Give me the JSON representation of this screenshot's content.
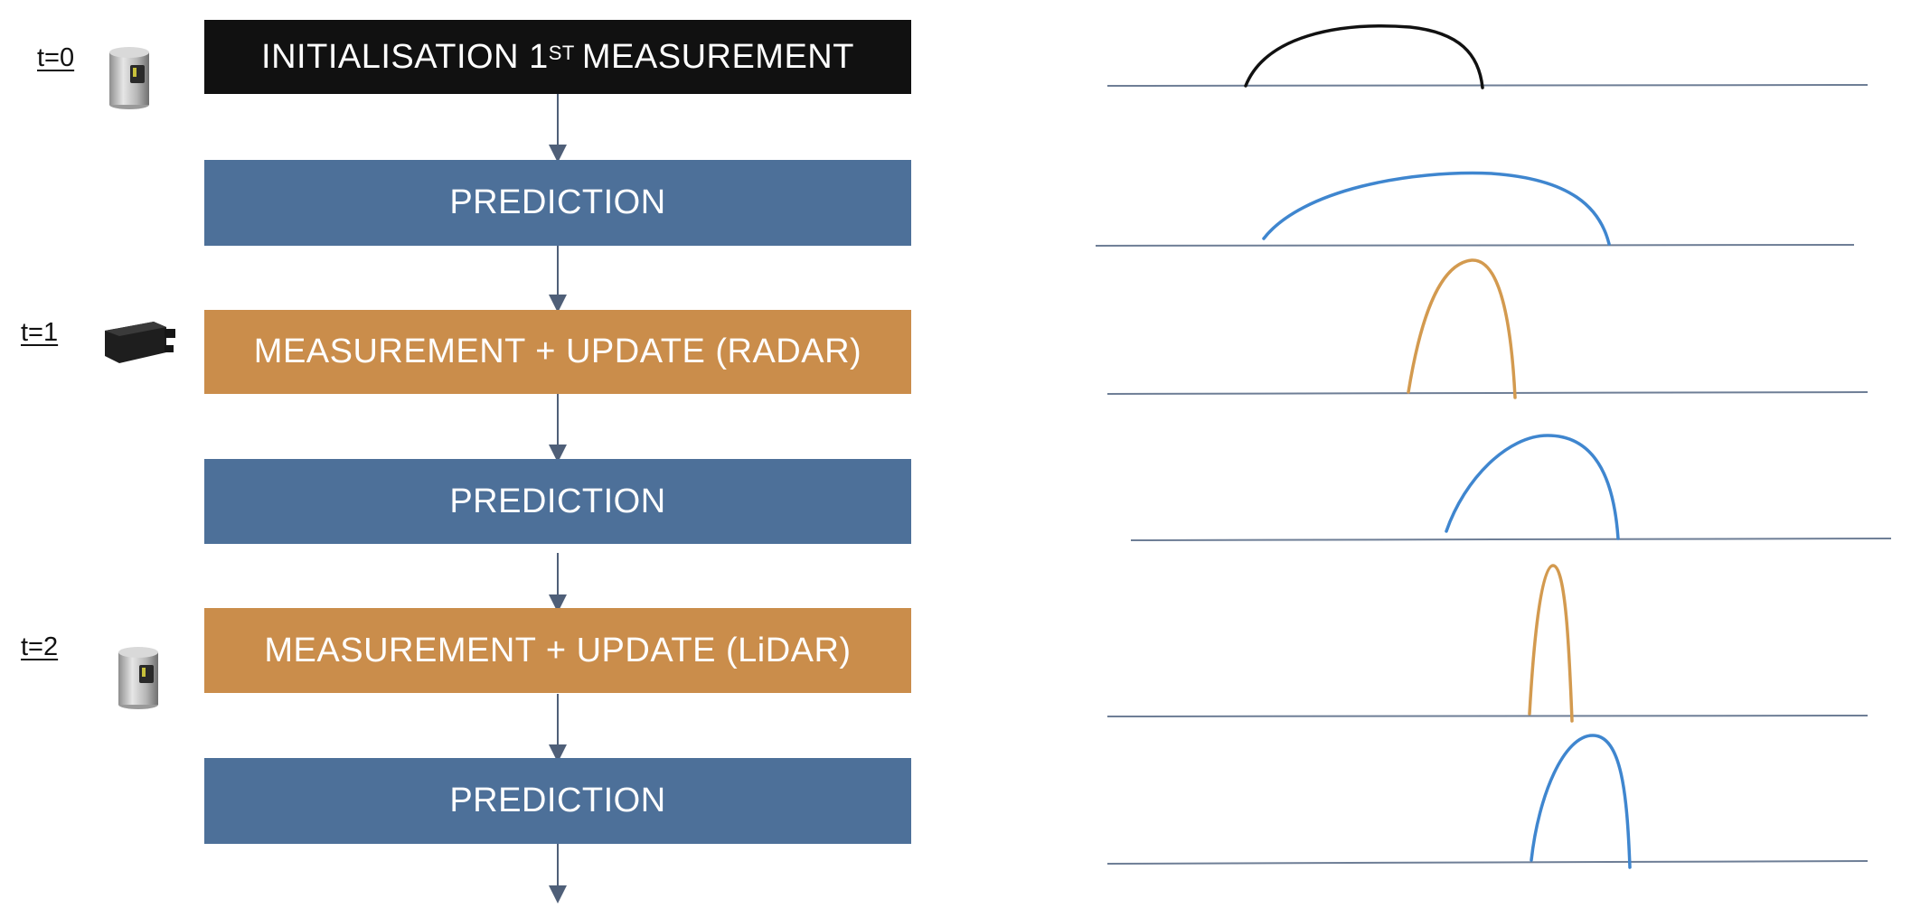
{
  "timeline": [
    {
      "id": "t0",
      "label": "t=0"
    },
    {
      "id": "t1",
      "label": "t=1"
    },
    {
      "id": "t2",
      "label": "t=2"
    }
  ],
  "steps": [
    {
      "id": "init",
      "text": "INITIALISATION 1",
      "sup": "ST",
      "text_after": "MEASUREMENT",
      "color": "#111111"
    },
    {
      "id": "pred1",
      "text": "PREDICTION",
      "color": "#4d7099"
    },
    {
      "id": "meas_radar",
      "text": "MEASUREMENT + UPDATE (RADAR)",
      "color": "#ca8d4b"
    },
    {
      "id": "pred2",
      "text": "PREDICTION",
      "color": "#4d7099"
    },
    {
      "id": "meas_lidar",
      "text": "MEASUREMENT + UPDATE (LiDAR)",
      "color": "#ca8d4b"
    },
    {
      "id": "pred3",
      "text": "PREDICTION",
      "color": "#4d7099"
    }
  ],
  "sensors": [
    {
      "id": "lidar-top",
      "icon": "lidar-sensor-icon"
    },
    {
      "id": "radar",
      "icon": "radar-sensor-icon"
    },
    {
      "id": "lidar-bottom",
      "icon": "lidar-sensor-icon"
    }
  ],
  "distribution_colors": {
    "initial": "#111111",
    "prediction": "#3f86cf",
    "measurement": "#d39a4f",
    "baseline": "#6e7e96"
  }
}
